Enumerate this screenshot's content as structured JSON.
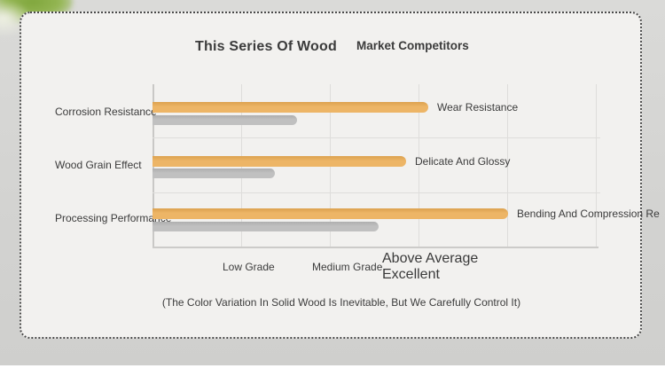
{
  "chart_data": {
    "type": "bar",
    "orientation": "horizontal",
    "title": "",
    "categories": [
      "Corrosion Resistance",
      "Wood Grain Effect",
      "Processing Performance"
    ],
    "bar_end_labels": [
      "Wear Resistance",
      "Delicate And Glossy",
      "Bending And Compression Re"
    ],
    "series": [
      {
        "name": "This Series Of Wood",
        "color": "#edb566",
        "color_dark": "#dda24f",
        "values": [
          3.11,
          2.86,
          4.01
        ]
      },
      {
        "name": "Market Competitors",
        "color": "#c0c0c0",
        "color_dark": "#aeaeae",
        "values": [
          1.63,
          1.38,
          2.55
        ]
      }
    ],
    "x_ticks": [
      "Low Grade",
      "Medium Grade",
      "Above Average",
      "Excellent"
    ],
    "x_tick_values": [
      1,
      2,
      3,
      4
    ],
    "xlim": [
      0,
      5
    ],
    "grid": true,
    "legend_position": "top",
    "footnote": "(The Color Variation In Solid Wood Is Inevitable, But We Carefully Control It)"
  }
}
